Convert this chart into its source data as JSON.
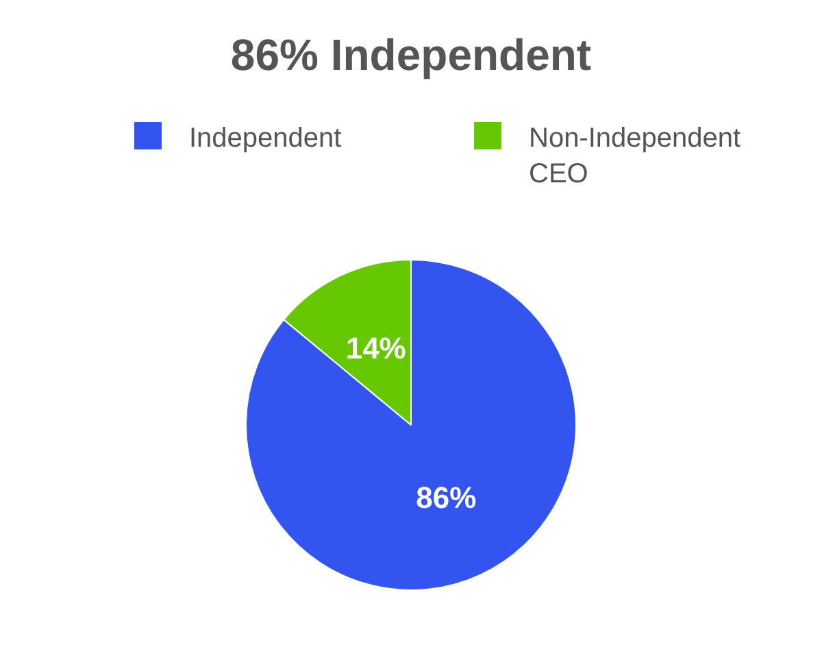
{
  "chart_data": {
    "type": "pie",
    "title": "86% Independent",
    "categories": [
      "Independent",
      "Non-Independent CEO"
    ],
    "values": [
      86,
      14
    ],
    "colors": [
      "#3354ef",
      "#65c803"
    ],
    "value_labels": [
      "86%",
      "14%"
    ],
    "legend": "top"
  }
}
